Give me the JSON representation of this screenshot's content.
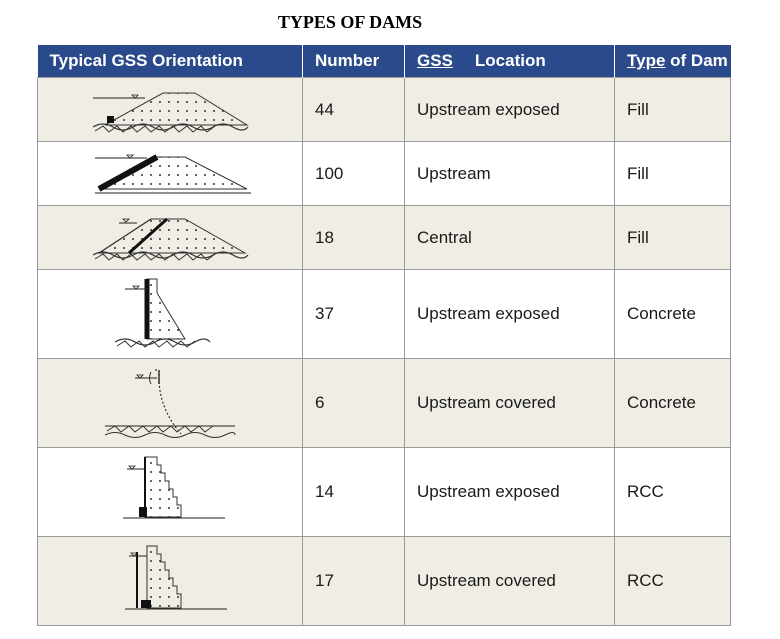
{
  "title": "TYPES OF DAMS",
  "headers": {
    "orientation": "Typical GSS Orientation",
    "number": "Number",
    "location_gss": "GSS",
    "location_rest": "Location",
    "type_part1": "Type",
    "type_part2": "of Dam"
  },
  "rows": [
    {
      "number": "44",
      "location": "Upstream exposed",
      "type": "Fill",
      "icon": "fill-dam-upstream-exposed-icon"
    },
    {
      "number": "100",
      "location": "Upstream",
      "type": "Fill",
      "icon": "fill-dam-upstream-icon"
    },
    {
      "number": "18",
      "location": "Central",
      "type": "Fill",
      "icon": "fill-dam-central-icon"
    },
    {
      "number": "37",
      "location": "Upstream exposed",
      "type": "Concrete",
      "icon": "concrete-dam-upstream-exposed-icon"
    },
    {
      "number": "6",
      "location": "Upstream covered",
      "type": "Concrete",
      "icon": "concrete-dam-upstream-covered-icon"
    },
    {
      "number": "14",
      "location": "Upstream exposed",
      "type": "RCC",
      "icon": "rcc-dam-upstream-exposed-icon"
    },
    {
      "number": "17",
      "location": "Upstream covered",
      "type": "RCC",
      "icon": "rcc-dam-upstream-covered-icon"
    }
  ],
  "colors": {
    "header_bg": "#2b4a8b",
    "odd_row_bg": "#efede4",
    "even_row_bg": "#ffffff"
  }
}
